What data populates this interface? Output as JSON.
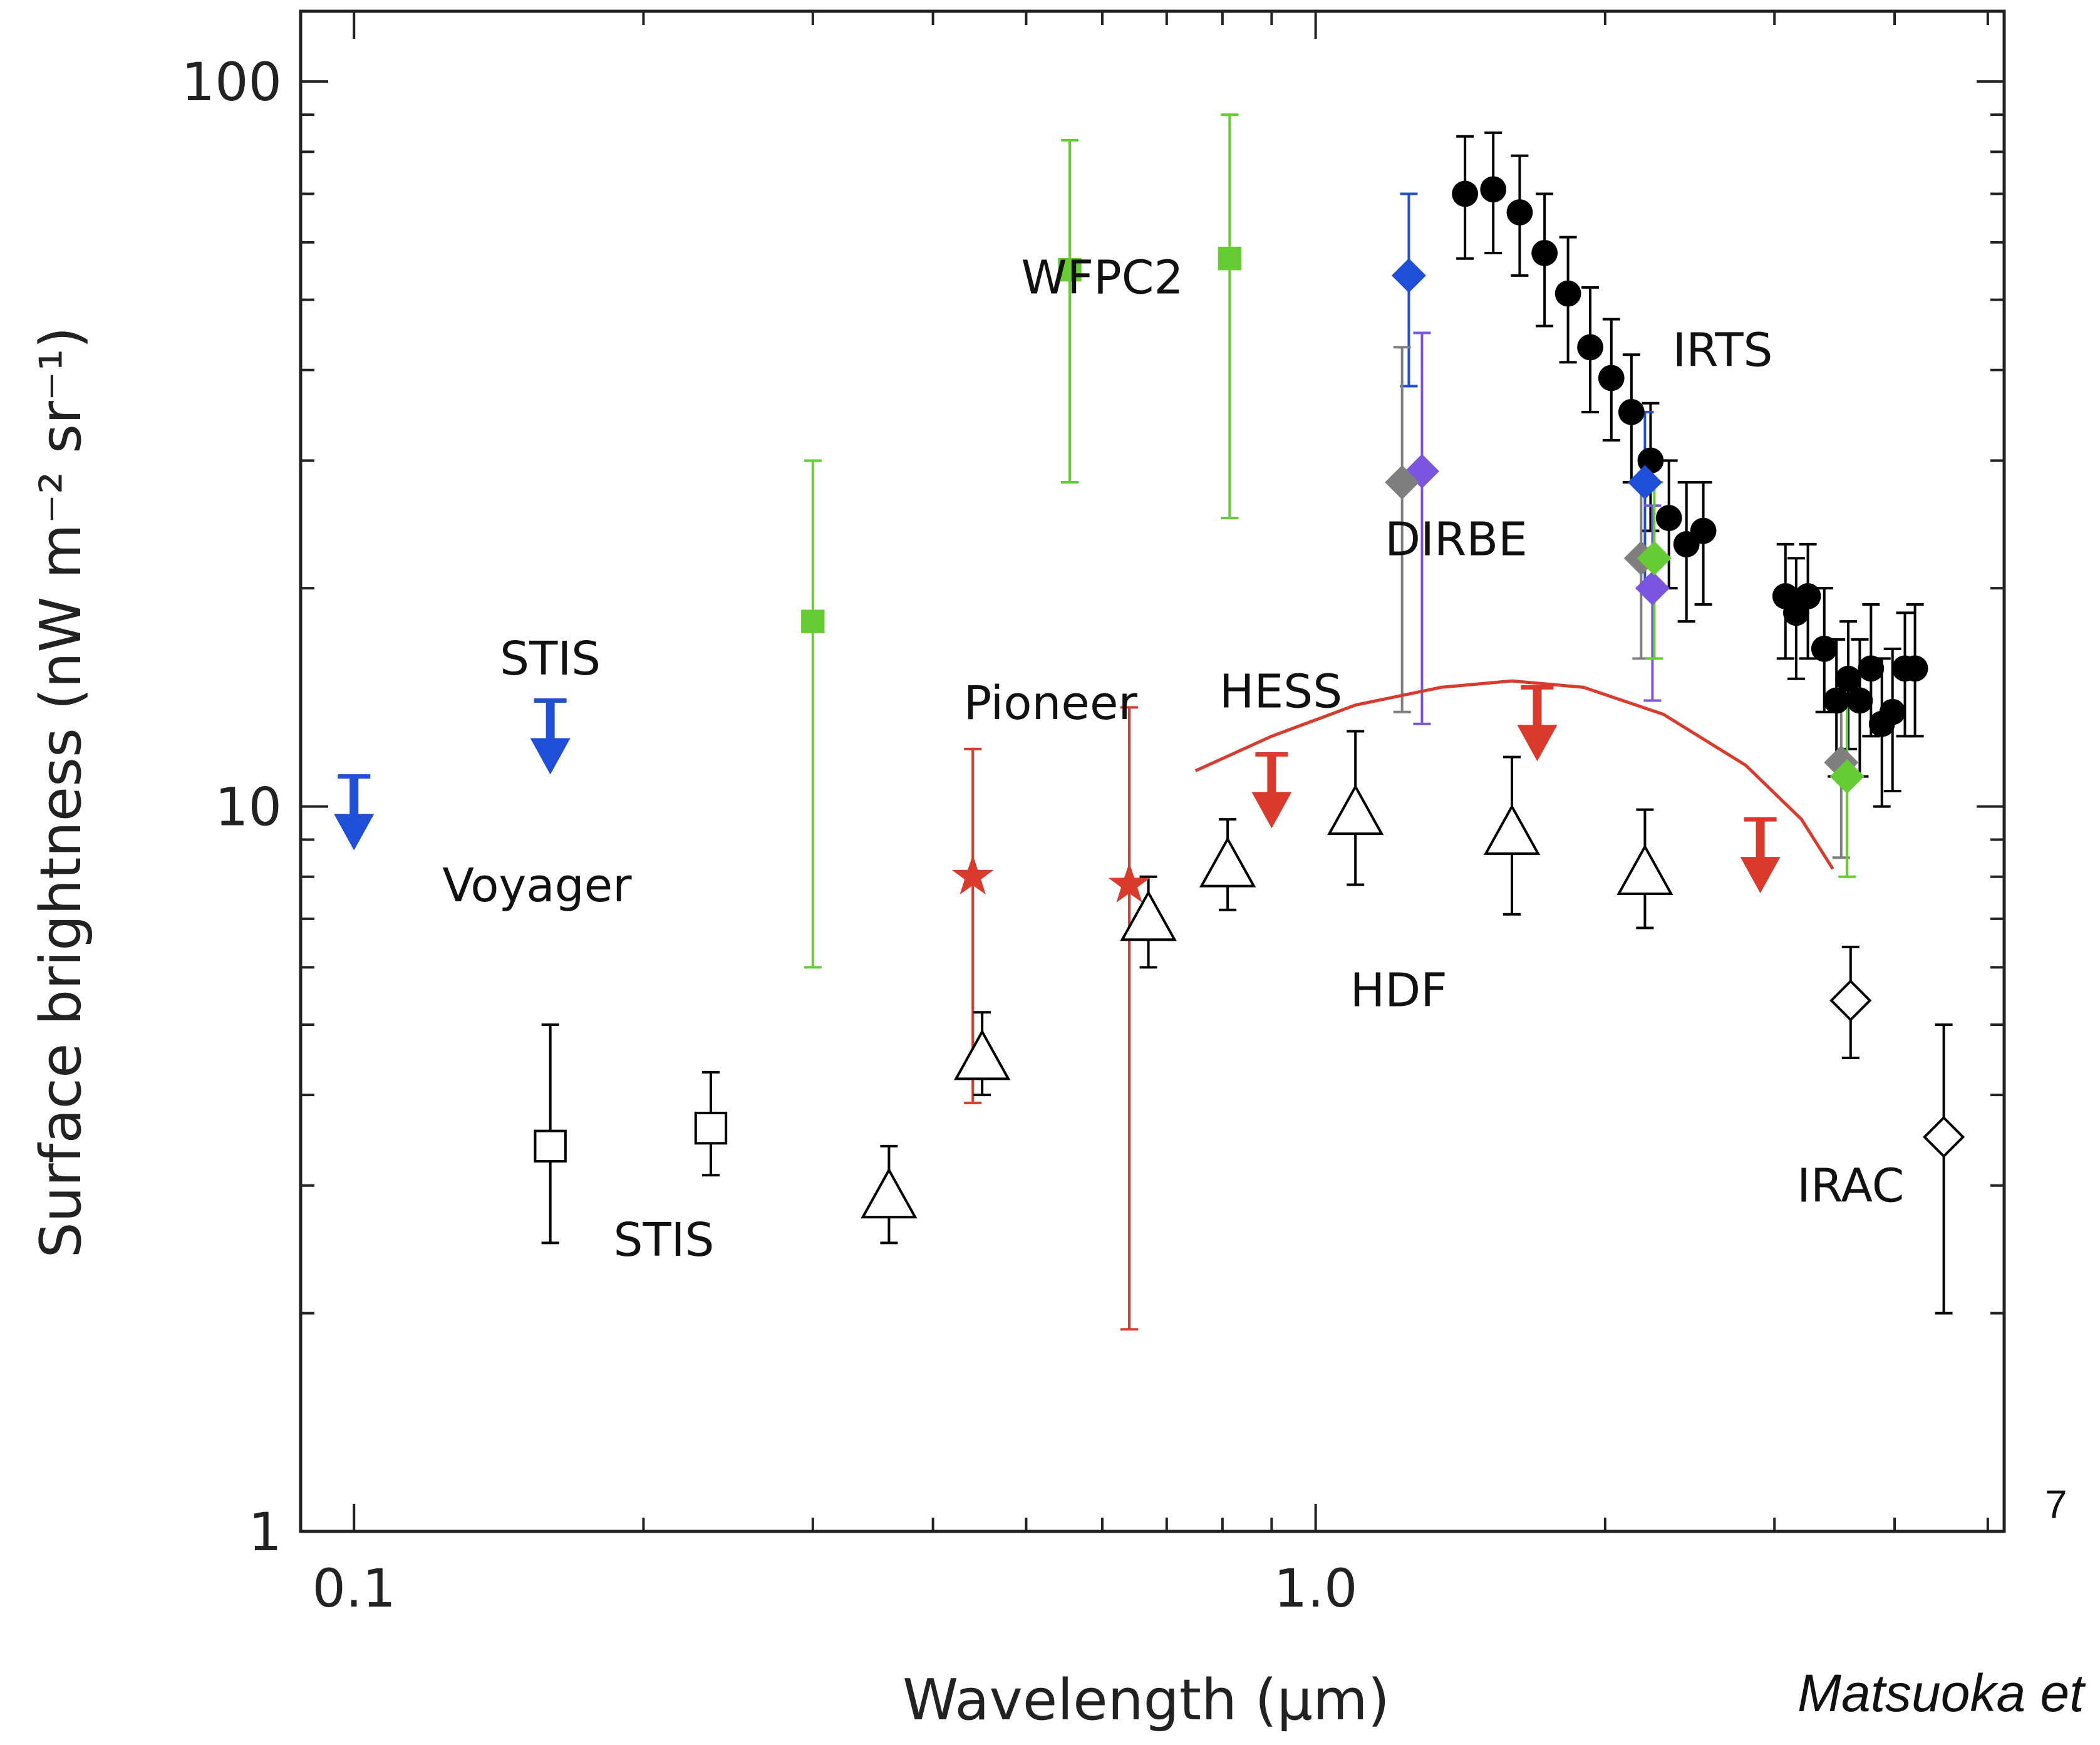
{
  "page_number": "7",
  "credit": "Matsuoka et",
  "chart_data": {
    "type": "scatter",
    "xscale": "log",
    "yscale": "log",
    "xlim": [
      0.088,
      5.2
    ],
    "ylim": [
      1,
      125
    ],
    "xlabel": "Wavelength (μm)",
    "ylabel": "Surface brightness (nW m⁻² sr⁻¹)",
    "x_ticks": [
      {
        "value": 0.1,
        "label": "0.1"
      },
      {
        "value": 1.0,
        "label": "1.0"
      }
    ],
    "y_ticks": [
      {
        "value": 1,
        "label": "1"
      },
      {
        "value": 10,
        "label": "10"
      },
      {
        "value": 100,
        "label": "100"
      }
    ],
    "annotations": [
      {
        "text": "WFPC2",
        "x": 0.6,
        "y": 51
      },
      {
        "text": "IRTS",
        "x": 2.65,
        "y": 40.5
      },
      {
        "text": "DIRBE",
        "x": 1.4,
        "y": 22.2
      },
      {
        "text": "STIS",
        "x": 0.16,
        "y": 15.2
      },
      {
        "text": "Pioneer",
        "x": 0.53,
        "y": 13.2
      },
      {
        "text": "HESS",
        "x": 0.92,
        "y": 13.7
      },
      {
        "text": "Voyager",
        "x": 0.155,
        "y": 7.4
      },
      {
        "text": "HDF",
        "x": 1.22,
        "y": 5.3
      },
      {
        "text": "STIS",
        "x": 0.21,
        "y": 2.4
      },
      {
        "text": "IRAC",
        "x": 3.6,
        "y": 2.85
      }
    ],
    "series": [
      {
        "group": "WFPC2",
        "marker": "square-filled",
        "color": "#66cc33",
        "points": [
          {
            "x": 0.3,
            "y": 18,
            "lo": 6,
            "hi": 30
          },
          {
            "x": 0.555,
            "y": 55,
            "lo": 28,
            "hi": 83
          },
          {
            "x": 0.814,
            "y": 57,
            "lo": 25,
            "hi": 90
          }
        ]
      },
      {
        "group": "IRTS",
        "marker": "circle-filled",
        "color": "#000000",
        "points": [
          {
            "x": 1.43,
            "y": 70,
            "lo": 57,
            "hi": 84
          },
          {
            "x": 1.53,
            "y": 71,
            "lo": 58,
            "hi": 85
          },
          {
            "x": 1.63,
            "y": 66,
            "lo": 54,
            "hi": 79
          },
          {
            "x": 1.73,
            "y": 58,
            "lo": 46,
            "hi": 70
          },
          {
            "x": 1.83,
            "y": 51,
            "lo": 41,
            "hi": 61
          },
          {
            "x": 1.93,
            "y": 43,
            "lo": 35,
            "hi": 52
          },
          {
            "x": 2.03,
            "y": 39,
            "lo": 32,
            "hi": 47
          },
          {
            "x": 2.13,
            "y": 35,
            "lo": 28,
            "hi": 42
          },
          {
            "x": 2.23,
            "y": 30,
            "lo": 24,
            "hi": 36
          },
          {
            "x": 2.33,
            "y": 25,
            "lo": 20,
            "hi": 30
          },
          {
            "x": 2.43,
            "y": 23,
            "lo": 18,
            "hi": 28
          },
          {
            "x": 2.53,
            "y": 24,
            "lo": 19,
            "hi": 28
          },
          {
            "x": 3.08,
            "y": 19.5,
            "lo": 16,
            "hi": 23
          },
          {
            "x": 3.16,
            "y": 18.5,
            "lo": 15,
            "hi": 22
          },
          {
            "x": 3.25,
            "y": 19.5,
            "lo": 16,
            "hi": 23
          },
          {
            "x": 3.38,
            "y": 16.5,
            "lo": 13.5,
            "hi": 20
          },
          {
            "x": 3.48,
            "y": 14,
            "lo": 11,
            "hi": 17
          },
          {
            "x": 3.58,
            "y": 15,
            "lo": 12,
            "hi": 18
          },
          {
            "x": 3.68,
            "y": 14,
            "lo": 11,
            "hi": 17
          },
          {
            "x": 3.78,
            "y": 15.5,
            "lo": 12.5,
            "hi": 19
          },
          {
            "x": 3.88,
            "y": 13,
            "lo": 10,
            "hi": 16
          },
          {
            "x": 3.98,
            "y": 13.5,
            "lo": 10.5,
            "hi": 16.5
          },
          {
            "x": 4.1,
            "y": 15.5,
            "lo": 12.5,
            "hi": 18.5
          },
          {
            "x": 4.2,
            "y": 15.5,
            "lo": 12.5,
            "hi": 19
          }
        ]
      },
      {
        "group": "DIRBE",
        "marker": "diamond-filled",
        "color": "#1f4fd8",
        "points": [
          {
            "x": 1.25,
            "y": 54,
            "lo": 38,
            "hi": 70
          },
          {
            "x": 2.2,
            "y": 28,
            "lo": 20,
            "hi": 35
          }
        ]
      },
      {
        "group": "DIRBE",
        "marker": "diamond-filled",
        "color": "#7a55e0",
        "points": [
          {
            "x": 1.29,
            "y": 29,
            "lo": 13,
            "hi": 45
          },
          {
            "x": 2.24,
            "y": 20,
            "lo": 14,
            "hi": 26
          }
        ]
      },
      {
        "group": "DIRBE",
        "marker": "diamond-filled",
        "color": "#7f7f7f",
        "points": [
          {
            "x": 1.23,
            "y": 28,
            "lo": 13.5,
            "hi": 43
          },
          {
            "x": 2.18,
            "y": 22,
            "lo": 16,
            "hi": 28
          },
          {
            "x": 3.52,
            "y": 11.5,
            "lo": 8.5,
            "hi": 14.5
          }
        ]
      },
      {
        "group": "DIRBE",
        "marker": "diamond-filled",
        "color": "#66cc33",
        "points": [
          {
            "x": 2.25,
            "y": 22,
            "lo": 16,
            "hi": 28
          },
          {
            "x": 3.57,
            "y": 11,
            "lo": 8,
            "hi": 14
          }
        ]
      },
      {
        "group": "Pioneer",
        "marker": "star-filled",
        "color": "#d93a2b",
        "points": [
          {
            "x": 0.44,
            "y": 8,
            "lo": 3.9,
            "hi": 12
          },
          {
            "x": 0.64,
            "y": 7.8,
            "lo": 1.9,
            "hi": 13.7
          }
        ]
      },
      {
        "group": "HDF",
        "marker": "triangle-open",
        "color": "#000000",
        "points": [
          {
            "x": 0.36,
            "y": 2.9,
            "lo": 2.5,
            "hi": 3.4
          },
          {
            "x": 0.45,
            "y": 4.5,
            "lo": 4.0,
            "hi": 5.2
          },
          {
            "x": 0.67,
            "y": 7.0,
            "lo": 6.0,
            "hi": 8.0
          },
          {
            "x": 0.81,
            "y": 8.3,
            "lo": 7.2,
            "hi": 9.6
          },
          {
            "x": 1.1,
            "y": 9.8,
            "lo": 7.8,
            "hi": 12.7
          },
          {
            "x": 1.6,
            "y": 9.2,
            "lo": 7.1,
            "hi": 11.7
          },
          {
            "x": 2.2,
            "y": 8.1,
            "lo": 6.8,
            "hi": 9.9
          }
        ]
      },
      {
        "group": "STIS",
        "marker": "square-open",
        "color": "#000000",
        "points": [
          {
            "x": 0.16,
            "y": 3.4,
            "lo": 2.5,
            "hi": 5.0
          },
          {
            "x": 0.235,
            "y": 3.6,
            "lo": 3.1,
            "hi": 4.3
          }
        ]
      },
      {
        "group": "IRAC",
        "marker": "diamond-open",
        "color": "#000000",
        "points": [
          {
            "x": 3.6,
            "y": 5.4,
            "lo": 4.5,
            "hi": 6.4
          },
          {
            "x": 4.5,
            "y": 3.5,
            "lo": 2.0,
            "hi": 5.0
          }
        ]
      },
      {
        "group": "Voyager",
        "marker": "upper-limit-arrow",
        "color": "#1f4fd8",
        "points": [
          {
            "x": 0.1,
            "y": 11
          }
        ]
      },
      {
        "group": "STIS",
        "marker": "upper-limit-arrow",
        "color": "#1f4fd8",
        "points": [
          {
            "x": 0.16,
            "y": 14
          }
        ]
      },
      {
        "group": "HESS",
        "marker": "upper-limit-arrow",
        "color": "#d93a2b",
        "points": [
          {
            "x": 0.9,
            "y": 11.8
          },
          {
            "x": 1.7,
            "y": 14.6
          },
          {
            "x": 2.9,
            "y": 9.6
          }
        ]
      },
      {
        "group": "HESS",
        "marker": "line",
        "color": "#d93a2b",
        "points": [
          {
            "x": 0.75,
            "y": 11.2
          },
          {
            "x": 0.9,
            "y": 12.5
          },
          {
            "x": 1.1,
            "y": 13.8
          },
          {
            "x": 1.35,
            "y": 14.6
          },
          {
            "x": 1.6,
            "y": 14.9
          },
          {
            "x": 1.9,
            "y": 14.6
          },
          {
            "x": 2.3,
            "y": 13.4
          },
          {
            "x": 2.8,
            "y": 11.4
          },
          {
            "x": 3.2,
            "y": 9.6
          },
          {
            "x": 3.45,
            "y": 8.2
          }
        ]
      }
    ]
  }
}
